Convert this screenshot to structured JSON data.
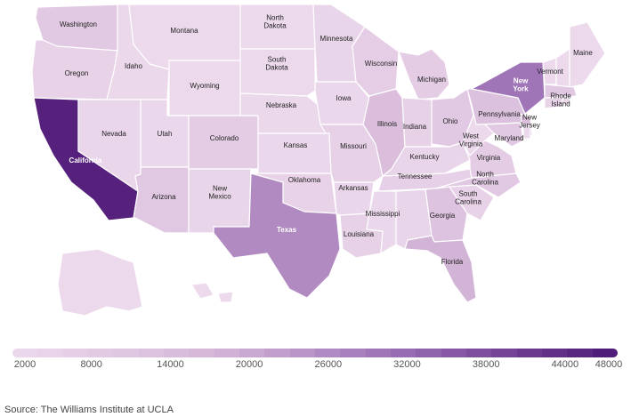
{
  "map": {
    "states": {
      "WA": {
        "label": "Washington",
        "value": 9000
      },
      "OR": {
        "label": "Oregon",
        "value": 5000
      },
      "CA": {
        "label": "California",
        "value": 46000
      },
      "ID": {
        "label": "Idaho",
        "value": 2500
      },
      "NV": {
        "label": "Nevada",
        "value": 3500
      },
      "MT": {
        "label": "Montana",
        "value": 2000
      },
      "WY": {
        "label": "Wyoming",
        "value": 2000
      },
      "UT": {
        "label": "Utah",
        "value": 3000
      },
      "AZ": {
        "label": "Arizona",
        "value": 10000
      },
      "CO": {
        "label": "Colorado",
        "value": 8000
      },
      "NM": {
        "label": "New\nMexico",
        "value": 4000
      },
      "ND": {
        "label": "North\nDakota",
        "value": 2000
      },
      "SD": {
        "label": "South\nDakota",
        "value": 2000
      },
      "NE": {
        "label": "Nebraska",
        "value": 2500
      },
      "KS": {
        "label": "Kansas",
        "value": 3000
      },
      "OK": {
        "label": "Oklahoma",
        "value": 5000
      },
      "TX": {
        "label": "Texas",
        "value": 26000
      },
      "MN": {
        "label": "Minnesota",
        "value": 4000
      },
      "IA": {
        "label": "Iowa",
        "value": 3000
      },
      "MO": {
        "label": "Missouri",
        "value": 5500
      },
      "AR": {
        "label": "Arkansas",
        "value": 3500
      },
      "LA": {
        "label": "Louisiana",
        "value": 5500
      },
      "WI": {
        "label": "Wisconsin",
        "value": 7000
      },
      "IL": {
        "label": "Illinois",
        "value": 14000
      },
      "MI": {
        "label": "Michigan",
        "value": 8000
      },
      "IN": {
        "label": "Indiana",
        "value": 5500
      },
      "OH": {
        "label": "Ohio",
        "value": 9000
      },
      "KY": {
        "label": "Kentucky",
        "value": 4000
      },
      "TN": {
        "label": "Tennessee",
        "value": 6000
      },
      "MS": {
        "label": "Mississippi",
        "value": 3000
      },
      "AL": {
        "label": "",
        "value": 4000
      },
      "GA": {
        "label": "Georgia",
        "value": 12000
      },
      "FL": {
        "label": "Florida",
        "value": 18000
      },
      "SC": {
        "label": "South\nCarolina",
        "value": 5000
      },
      "NC": {
        "label": "North\nCarolina",
        "value": 9000
      },
      "VA": {
        "label": "Virginia",
        "value": 8000
      },
      "WV": {
        "label": "West\nVirginia",
        "value": 2000
      },
      "PA": {
        "label": "Pennsylvania",
        "value": 13000
      },
      "NY": {
        "label": "New\nYork",
        "value": 30000
      },
      "NJ": {
        "label": "New\nJersey",
        "value": 14000
      },
      "MD": {
        "label": "Maryland",
        "value": 9000
      },
      "VT": {
        "label": "Vermont",
        "value": 2000
      },
      "NH": {
        "label": "",
        "value": 2000
      },
      "ME": {
        "label": "Maine",
        "value": 2000
      },
      "MA": {
        "label": "",
        "value": 10000
      },
      "RI": {
        "label": "Rhode\nIsland",
        "value": 2000
      },
      "CT": {
        "label": "",
        "value": 5000
      },
      "DE": {
        "label": "",
        "value": 2000
      },
      "AK": {
        "label": "",
        "value": 2000
      },
      "HI": {
        "label": "",
        "value": 2000
      }
    }
  },
  "legend": {
    "min": 2000,
    "max": 48000,
    "colors": [
      "#ecd9ec",
      "#d5b7d8",
      "#9467b0",
      "#4b1775"
    ],
    "ticks": [
      "2000",
      "8000",
      "14000",
      "20000",
      "26000",
      "32000",
      "38000",
      "44000",
      "48000"
    ]
  },
  "source": "Source: The Williams Institute at UCLA"
}
